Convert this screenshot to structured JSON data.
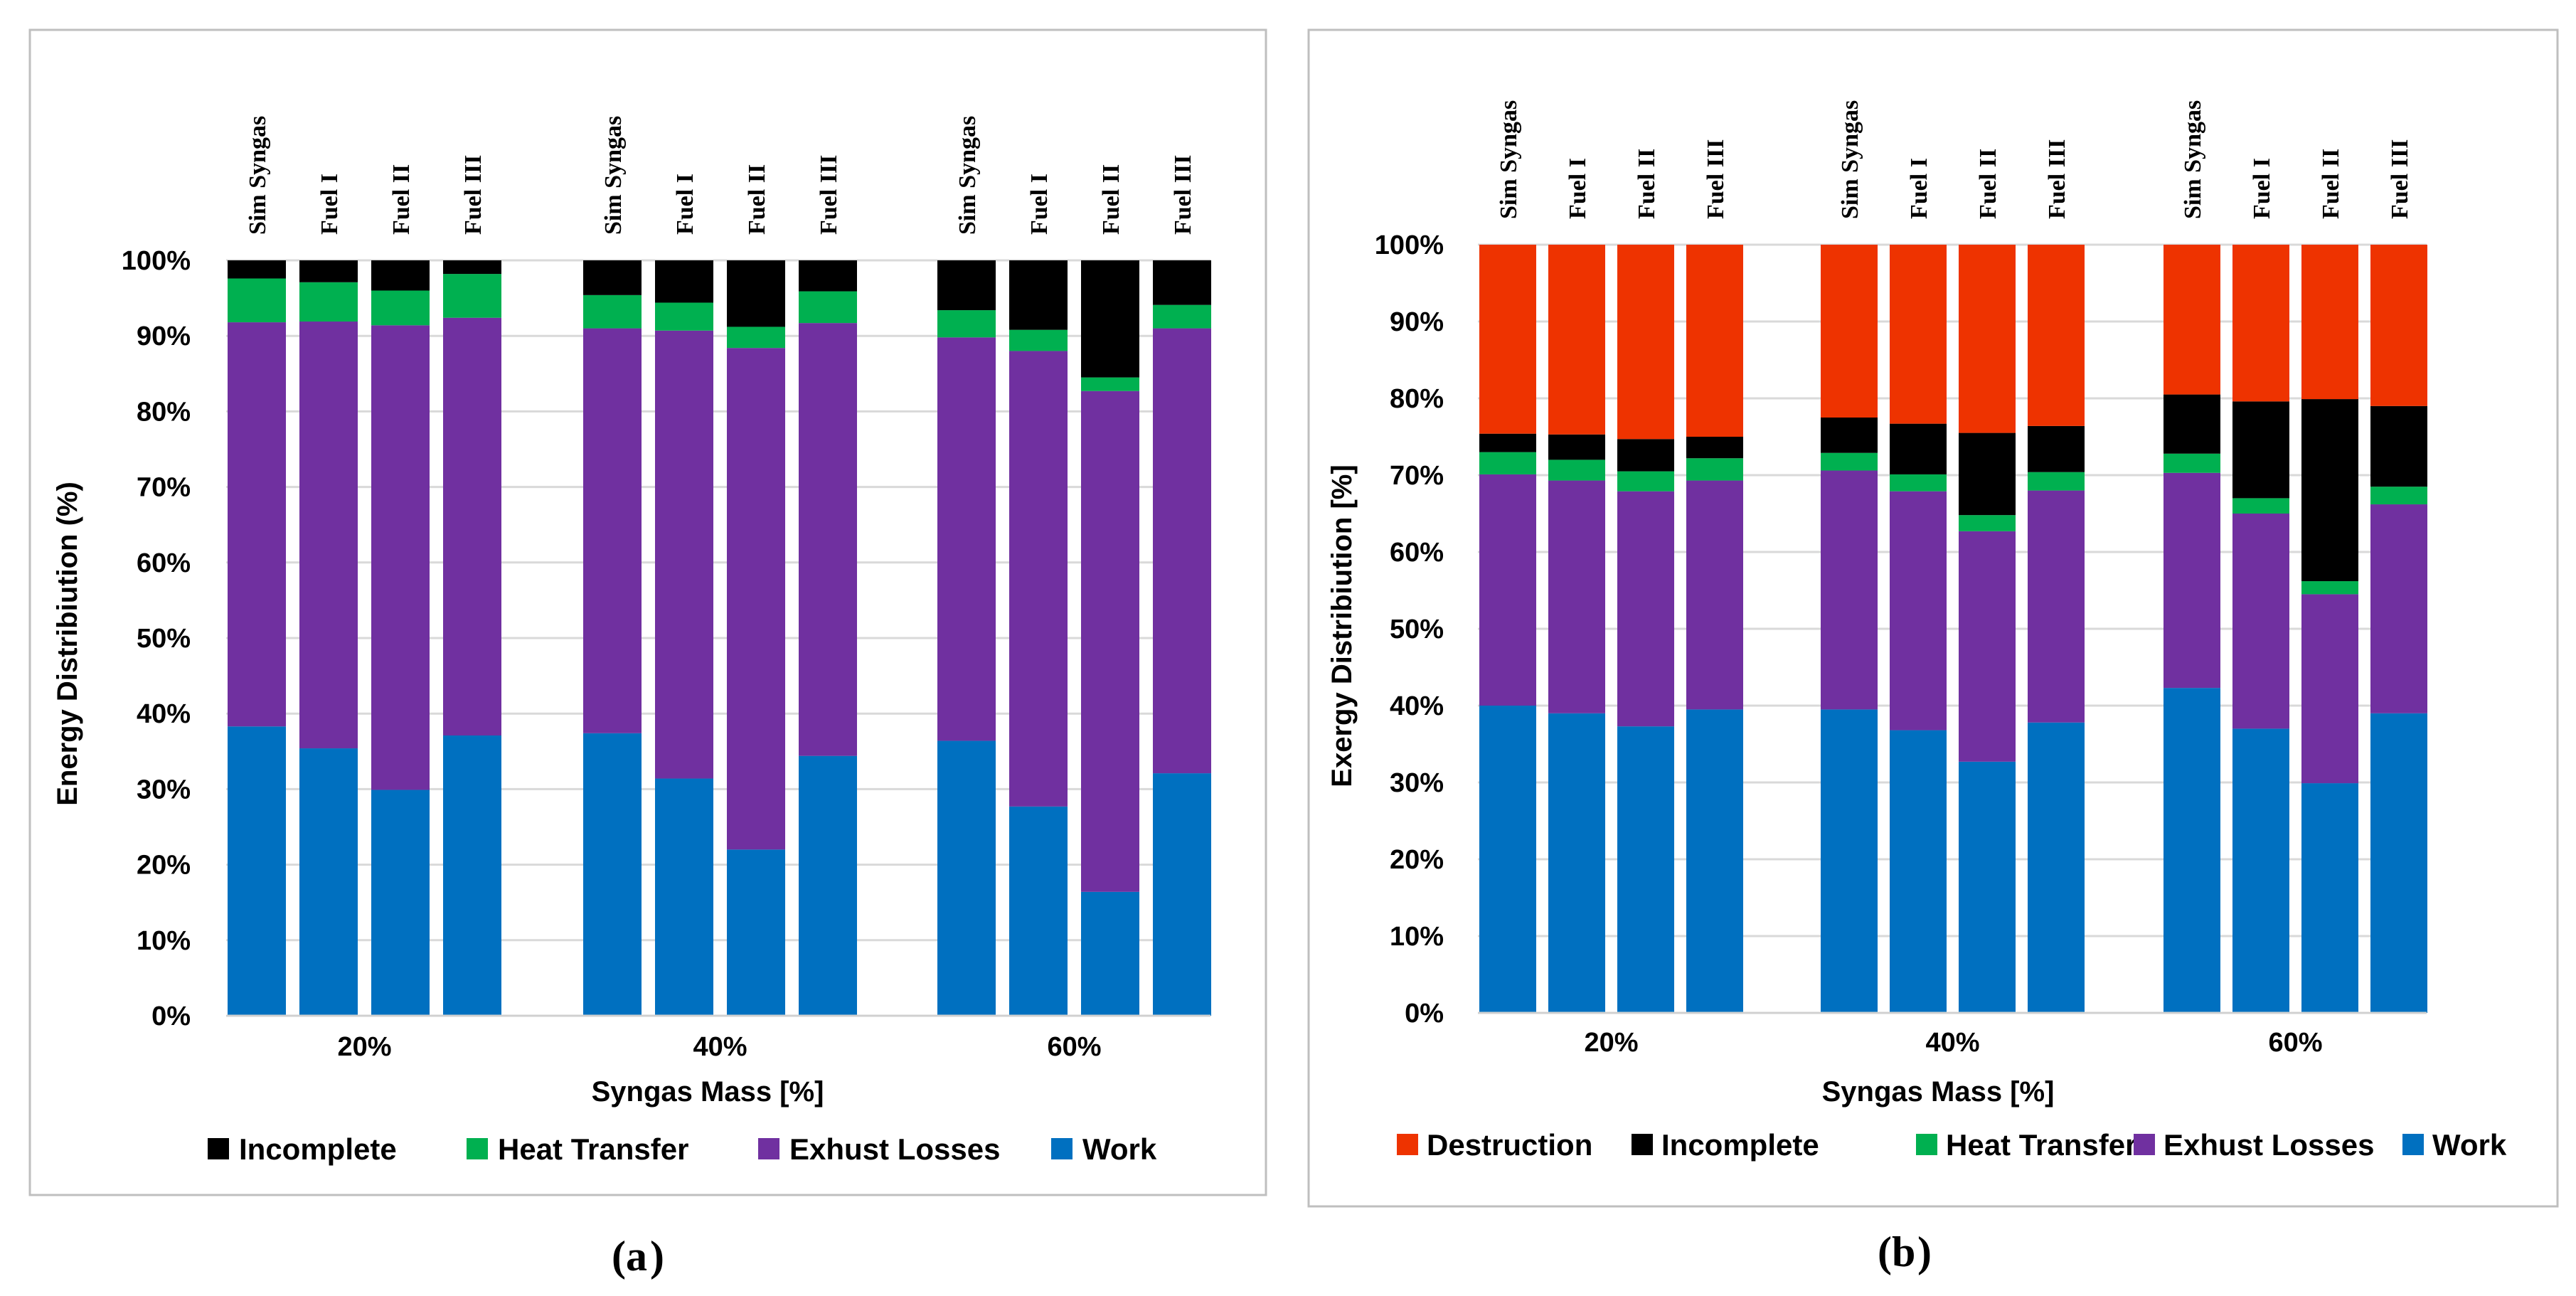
{
  "chart_data": [
    {
      "type": "bar",
      "stacked": true,
      "caption": "a",
      "ylabel": "Energy Distribiution (%)",
      "xlabel": "Syngas Mass [%]",
      "ylim": [
        0,
        100
      ],
      "yticks": [
        "0%",
        "10%",
        "20%",
        "30%",
        "40%",
        "50%",
        "60%",
        "70%",
        "80%",
        "90%",
        "100%"
      ],
      "groups": [
        "20%",
        "40%",
        "60%"
      ],
      "bar_labels": [
        "Sim Syngas",
        "Fuel I",
        "Fuel II",
        "Fuel III"
      ],
      "series": [
        {
          "name": "Work",
          "color": "#0070C0",
          "values": [
            [
              38.3,
              35.4,
              29.9,
              37.1
            ],
            [
              37.4,
              31.4,
              22.0,
              34.4
            ],
            [
              36.4,
              27.7,
              16.4,
              32.1
            ]
          ]
        },
        {
          "name": "Exhust Losses",
          "color": "#7030A0",
          "values": [
            [
              53.5,
              56.5,
              61.5,
              55.3
            ],
            [
              53.6,
              59.3,
              66.4,
              57.3
            ],
            [
              53.4,
              60.3,
              66.3,
              58.9
            ]
          ]
        },
        {
          "name": "Heat Transfer",
          "color": "#00B050",
          "values": [
            [
              5.8,
              5.2,
              4.6,
              5.8
            ],
            [
              4.4,
              3.7,
              2.8,
              4.2
            ],
            [
              3.6,
              2.8,
              1.8,
              3.1
            ]
          ]
        },
        {
          "name": "Incomplete",
          "color": "#000000",
          "values": [
            [
              2.4,
              2.9,
              4.0,
              1.8
            ],
            [
              4.6,
              5.6,
              8.8,
              4.1
            ],
            [
              6.6,
              9.2,
              15.5,
              5.9
            ]
          ]
        }
      ],
      "legend_order": [
        "Incomplete",
        "Heat Transfer",
        "Exhust Losses",
        "Work"
      ]
    },
    {
      "type": "bar",
      "stacked": true,
      "caption": "b",
      "ylabel": "Exergy Distribiution [%]",
      "xlabel": "Syngas Mass [%]",
      "ylim": [
        0,
        100
      ],
      "yticks": [
        "0%",
        "10%",
        "20%",
        "30%",
        "40%",
        "50%",
        "60%",
        "70%",
        "80%",
        "90%",
        "100%"
      ],
      "groups": [
        "20%",
        "40%",
        "60%"
      ],
      "bar_labels": [
        "Sim Syngas",
        "Fuel I",
        "Fuel II",
        "Fuel III"
      ],
      "series": [
        {
          "name": "Work",
          "color": "#0070C0",
          "values": [
            [
              40.0,
              39.0,
              37.3,
              39.5
            ],
            [
              39.5,
              36.8,
              32.7,
              37.8
            ],
            [
              42.3,
              37.0,
              29.9,
              39.0
            ]
          ]
        },
        {
          "name": "Exhust Losses",
          "color": "#7030A0",
          "values": [
            [
              30.1,
              30.3,
              30.6,
              29.8
            ],
            [
              31.1,
              31.1,
              30.0,
              30.2
            ],
            [
              28.0,
              28.0,
              24.6,
              27.2
            ]
          ]
        },
        {
          "name": "Heat Transfer",
          "color": "#00B050",
          "values": [
            [
              2.9,
              2.7,
              2.6,
              2.9
            ],
            [
              2.3,
              2.2,
              2.1,
              2.4
            ],
            [
              2.5,
              2.0,
              1.7,
              2.3
            ]
          ]
        },
        {
          "name": "Incomplete",
          "color": "#000000",
          "values": [
            [
              2.4,
              3.3,
              4.2,
              2.8
            ],
            [
              4.6,
              6.6,
              10.7,
              6.0
            ],
            [
              7.7,
              12.6,
              23.7,
              10.5
            ]
          ]
        },
        {
          "name": "Destruction",
          "color": "#EE3300",
          "values": [
            [
              24.6,
              24.7,
              25.3,
              25.0
            ],
            [
              22.5,
              23.3,
              24.5,
              23.6
            ],
            [
              19.5,
              20.4,
              20.1,
              21.0
            ]
          ]
        }
      ],
      "legend_order": [
        "Destruction",
        "Incomplete",
        "Heat Transfer",
        "Exhust Losses",
        "Work"
      ]
    }
  ]
}
